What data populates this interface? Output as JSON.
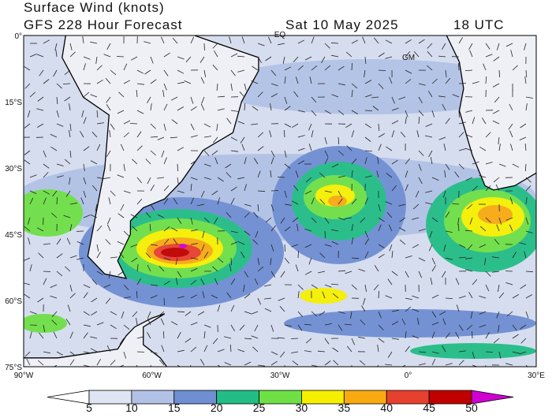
{
  "header": {
    "title": "Surface Wind (knots)",
    "subtitle": "GFS 228 Hour Forecast",
    "date": "Sat 10 May 2025",
    "time": "18 UTC"
  },
  "map": {
    "lat_labels": [
      "0°",
      "15°S",
      "30°S",
      "45°S",
      "60°S",
      "75°S"
    ],
    "lon_labels": [
      "90°W",
      "60°W",
      "30°W",
      "0°",
      "30°E"
    ],
    "annotations": [
      "EQ",
      "GM"
    ]
  },
  "colorbar": {
    "ticks": [
      5,
      10,
      15,
      20,
      25,
      30,
      35,
      40,
      45,
      50
    ],
    "colors": [
      "#ffffff",
      "#dfe5f2",
      "#b2c2e6",
      "#6f8fd2",
      "#22bd86",
      "#6ee046",
      "#f6f000",
      "#f8aa10",
      "#e8402e",
      "#c00000",
      "#d000d0"
    ]
  }
}
